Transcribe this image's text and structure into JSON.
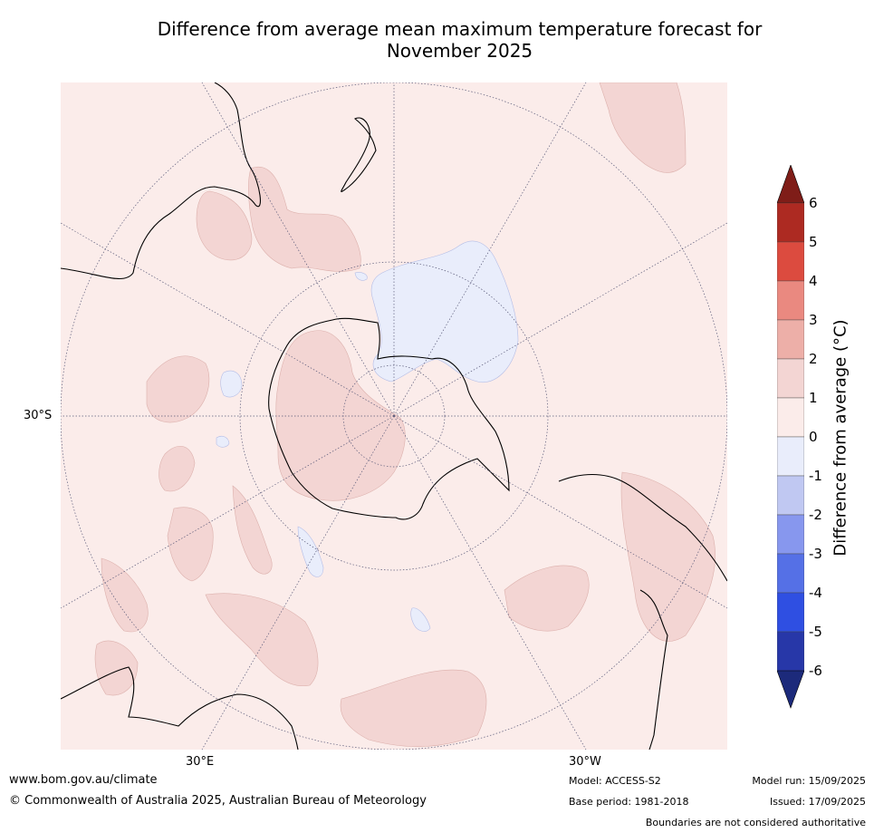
{
  "title_line1": "Difference from average mean maximum temperature forecast for",
  "title_line2": "November 2025",
  "axis": {
    "lat_label": "30°S",
    "lon_label_left": "30°E",
    "lon_label_right": "30°W"
  },
  "colorbar": {
    "label": "Difference from average (°C)",
    "ticks": [
      "6",
      "5",
      "4",
      "3",
      "2",
      "1",
      "0",
      "-1",
      "-2",
      "-3",
      "-4",
      "-5",
      "-6"
    ],
    "colors": {
      "over": "#7f1d18",
      "b5_6": "#ad2a22",
      "b4_5": "#dc4b3f",
      "b3_4": "#ea8980",
      "b2_3": "#edafa8",
      "b1_2": "#f3d5d3",
      "b0_1": "#fbecea",
      "bm1_0": "#e9edfb",
      "bm2_m1": "#c0c8f2",
      "bm3_m2": "#8797ee",
      "bm4_m3": "#5570e6",
      "bm5_m4": "#2f4fe2",
      "bm6_m5": "#2737a8",
      "under": "#1c2a7b"
    }
  },
  "footer": {
    "website": "www.bom.gov.au/climate",
    "copyright": "© Commonwealth of Australia 2025, Australian Bureau of Meteorology",
    "model": "Model: ACCESS-S2",
    "base_period": "Base period: 1981-2018",
    "model_run": "Model run: 15/09/2025",
    "issued": "Issued: 17/09/2025",
    "disclaimer": "Boundaries are not considered authoritative"
  }
}
